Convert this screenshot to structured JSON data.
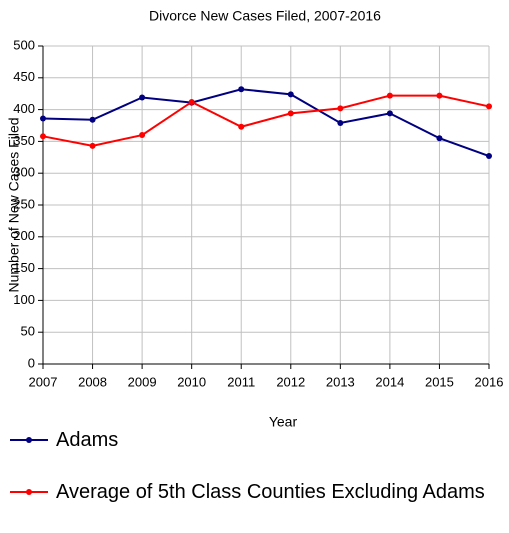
{
  "chart_data": {
    "type": "line",
    "title": "Divorce New Cases Filed, 2007-2016",
    "x_label": "Year",
    "y_label": "Number of New Cases Filed",
    "x": [
      2007,
      2008,
      2009,
      2010,
      2011,
      2012,
      2013,
      2014,
      2015,
      2016
    ],
    "xlim": [
      2007,
      2016
    ],
    "xticks": [
      2007,
      2008,
      2009,
      2010,
      2011,
      2012,
      2013,
      2014,
      2015,
      2016
    ],
    "ylim": [
      0,
      500
    ],
    "yticks": [
      0,
      50,
      100,
      150,
      200,
      250,
      300,
      350,
      400,
      450,
      500
    ],
    "grid": true,
    "legend": "bottom",
    "series": [
      {
        "name": "Adams",
        "color": "#000080",
        "values": [
          386,
          384,
          419,
          411,
          432,
          424,
          379,
          394,
          355,
          327
        ]
      },
      {
        "name": "Average of 5th Class Counties Excluding Adams",
        "color": "#ff0000",
        "values": [
          358,
          343,
          360,
          412,
          373,
          394,
          402,
          422,
          422,
          405
        ]
      }
    ]
  }
}
